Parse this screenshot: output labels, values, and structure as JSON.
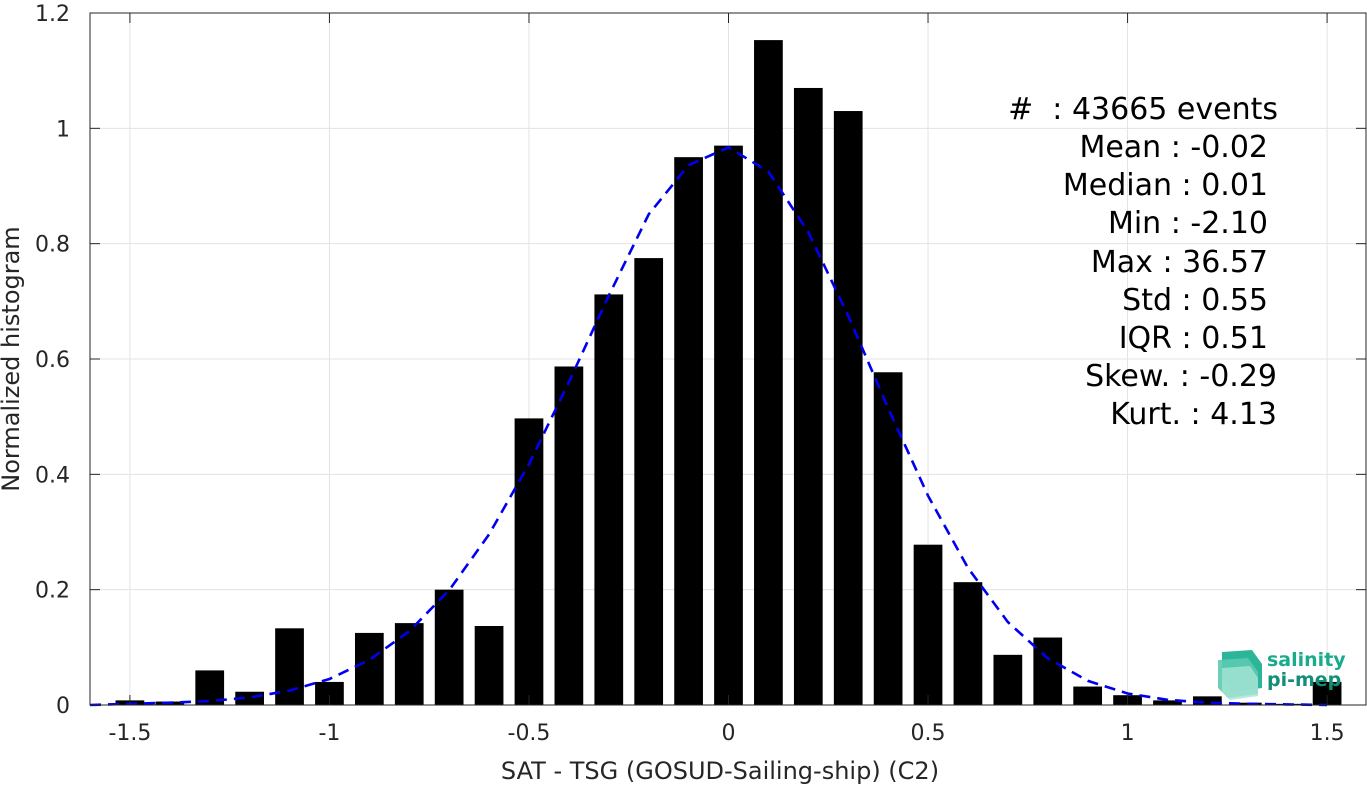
{
  "chart_data": {
    "type": "bar",
    "xlabel": "SAT - TSG (GOSUD-Sailing-ship) (C2)",
    "ylabel": "Normalized histogram",
    "xlim": [
      -1.6,
      1.6
    ],
    "ylim": [
      0,
      1.2
    ],
    "xticks": [
      -1.5,
      -1,
      -0.5,
      0,
      0.5,
      1,
      1.5
    ],
    "xtick_labels": [
      "-1.5",
      "-1",
      "-0.5",
      "0",
      "0.5",
      "1",
      "1.5"
    ],
    "yticks": [
      0,
      0.2,
      0.4,
      0.6,
      0.8,
      1,
      1.2
    ],
    "ytick_labels": [
      "0",
      "0.2",
      "0.4",
      "0.6",
      "0.8",
      "1",
      "1.2"
    ],
    "grid": true,
    "bin_width": 0.1,
    "series": [
      {
        "kind": "histogram",
        "color": "#000000",
        "x": [
          -1.5,
          -1.4,
          -1.3,
          -1.2,
          -1.1,
          -1.0,
          -0.9,
          -0.8,
          -0.7,
          -0.6,
          -0.5,
          -0.4,
          -0.3,
          -0.2,
          -0.1,
          0.0,
          0.1,
          0.2,
          0.3,
          0.4,
          0.5,
          0.6,
          0.7,
          0.8,
          0.9,
          1.0,
          1.1,
          1.2,
          1.3,
          1.4,
          1.5
        ],
        "values": [
          0.008,
          0.006,
          0.06,
          0.023,
          0.133,
          0.04,
          0.125,
          0.142,
          0.2,
          0.137,
          0.497,
          0.587,
          0.712,
          0.775,
          0.95,
          0.97,
          1.153,
          1.07,
          1.03,
          0.577,
          0.278,
          0.213,
          0.087,
          0.117,
          0.032,
          0.017,
          0.008,
          0.015,
          0.004,
          0.002,
          0.04
        ]
      },
      {
        "kind": "gaussian-fit",
        "color": "#0000ee",
        "style": "dashed",
        "x": [
          -1.6,
          -1.5,
          -1.4,
          -1.3,
          -1.2,
          -1.1,
          -1.0,
          -0.9,
          -0.8,
          -0.7,
          -0.6,
          -0.5,
          -0.4,
          -0.3,
          -0.2,
          -0.1,
          0.0,
          0.1,
          0.2,
          0.3,
          0.4,
          0.5,
          0.6,
          0.7,
          0.8,
          0.9,
          1.0,
          1.1,
          1.2,
          1.3,
          1.4,
          1.5
        ],
        "values": [
          0.0,
          0.002,
          0.004,
          0.007,
          0.013,
          0.025,
          0.045,
          0.078,
          0.128,
          0.199,
          0.296,
          0.418,
          0.56,
          0.71,
          0.851,
          0.936,
          0.967,
          0.925,
          0.82,
          0.675,
          0.515,
          0.363,
          0.238,
          0.144,
          0.081,
          0.042,
          0.02,
          0.009,
          0.004,
          0.002,
          0.001,
          0.0
        ]
      }
    ],
    "annotations": {
      "lines": [
        "#  : 43665 events",
        "Mean : -0.02",
        "Median : 0.01",
        "Min : -2.10",
        "Max : 36.57",
        "Std : 0.55",
        "IQR : 0.51",
        "Skew. : -0.29",
        "Kurt. : 4.13"
      ]
    }
  },
  "logo": {
    "line1": "salinity",
    "line2": "pi-mep",
    "color1": "#1aaa8c",
    "color2": "#148f77"
  }
}
